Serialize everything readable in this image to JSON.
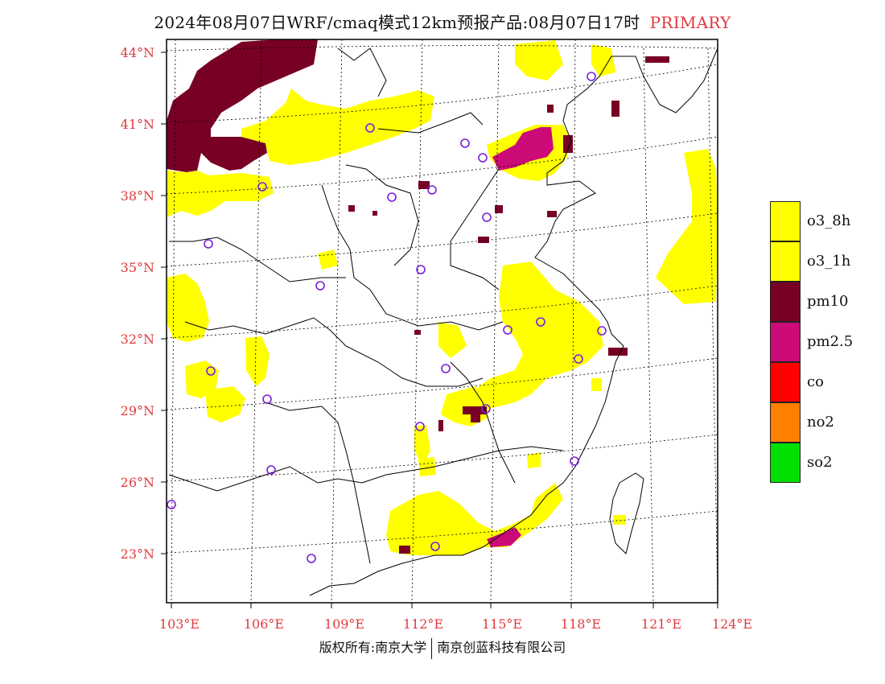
{
  "title": {
    "main": "2024年08月07日WRF/cmaq模式12km预报产品:08月07日17时",
    "tag": "PRIMARY"
  },
  "axes": {
    "lat_labels": [
      {
        "text": "44°N",
        "lat": 44
      },
      {
        "text": "41°N",
        "lat": 41
      },
      {
        "text": "38°N",
        "lat": 38
      },
      {
        "text": "35°N",
        "lat": 35
      },
      {
        "text": "32°N",
        "lat": 32
      },
      {
        "text": "29°N",
        "lat": 29
      },
      {
        "text": "26°N",
        "lat": 26
      },
      {
        "text": "23°N",
        "lat": 23
      }
    ],
    "lon_labels": [
      {
        "text": "103°E",
        "lon": 103
      },
      {
        "text": "106°E",
        "lon": 106
      },
      {
        "text": "109°E",
        "lon": 109
      },
      {
        "text": "112°E",
        "lon": 112
      },
      {
        "text": "115°E",
        "lon": 115
      },
      {
        "text": "118°E",
        "lon": 118
      },
      {
        "text": "121°E",
        "lon": 121
      },
      {
        "text": "124°E",
        "lon": 124
      }
    ]
  },
  "legend": [
    {
      "label": "o3_8h",
      "color": "#ffff00"
    },
    {
      "label": "o3_1h",
      "color": "#ffff00"
    },
    {
      "label": "pm10",
      "color": "#780024"
    },
    {
      "label": "pm2.5",
      "color": "#cc0a78"
    },
    {
      "label": "co",
      "color": "#ff0000"
    },
    {
      "label": "no2",
      "color": "#ff7f00"
    },
    {
      "label": "so2",
      "color": "#00e000"
    }
  ],
  "footer": {
    "left": "版权所有:南京大学",
    "right": "南京创蓝科技有限公司"
  },
  "colors": {
    "o3": "#ffff00",
    "pm10": "#780024",
    "pm25": "#cc0a78",
    "station_marker": "#7a1fd6",
    "axis_label": "#e0393e"
  }
}
